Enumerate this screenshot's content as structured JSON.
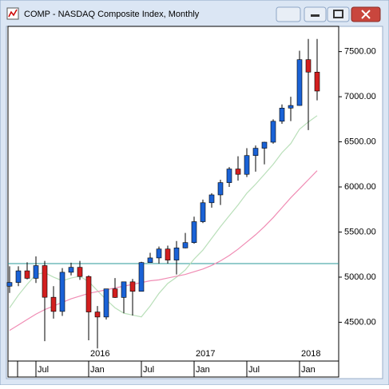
{
  "chart_data": {
    "type": "candlestick",
    "title": "COMP - NASDAQ Composite Index, Monthly",
    "categories": [
      null,
      null,
      null,
      "Jul",
      null,
      null,
      null,
      null,
      null,
      "Jan",
      null,
      null,
      null,
      null,
      null,
      "Jul",
      null,
      null,
      null,
      null,
      null,
      "Jan",
      null,
      null,
      null,
      null,
      null,
      "Jul",
      null,
      null,
      null,
      null,
      null,
      "Jan",
      null,
      null
    ],
    "years": [
      null,
      null,
      null,
      null,
      null,
      null,
      null,
      null,
      null,
      "2016",
      null,
      null,
      null,
      null,
      null,
      null,
      null,
      null,
      null,
      null,
      null,
      "2017",
      null,
      null,
      null,
      null,
      null,
      null,
      null,
      null,
      null,
      null,
      null,
      "2018",
      null,
      null
    ],
    "open": [
      4900,
      4941,
      5070,
      4987,
      5128,
      4777,
      4620,
      5054,
      5109,
      5007,
      4614,
      4558,
      4870,
      4775,
      4948,
      4843,
      5162,
      5213,
      5312,
      5189,
      5324,
      5383,
      5615,
      5825,
      5912,
      6048,
      6199,
      6140,
      6348,
      6429,
      6496,
      6728,
      6874,
      6903,
      7411,
      7273
    ],
    "high": [
      5120,
      5120,
      5165,
      5230,
      5180,
      4900,
      5100,
      5160,
      5180,
      5020,
      4680,
      4870,
      4990,
      4950,
      4980,
      5170,
      5270,
      5340,
      5350,
      5400,
      5490,
      5670,
      5860,
      5930,
      6080,
      6220,
      6340,
      6430,
      6460,
      6500,
      6750,
      6915,
      7000,
      7510,
      7640,
      7640
    ],
    "low": [
      4825,
      4900,
      4975,
      4935,
      4290,
      4540,
      4570,
      5020,
      4970,
      4300,
      4210,
      4530,
      4770,
      4600,
      4575,
      4840,
      5160,
      5150,
      5150,
      5030,
      5320,
      5370,
      5600,
      5770,
      5800,
      6000,
      6070,
      6110,
      6170,
      6250,
      6480,
      6700,
      6730,
      6900,
      6630,
      6960
    ],
    "close": [
      4941,
      5070,
      4987,
      5128,
      4777,
      4620,
      5054,
      5109,
      5007,
      4614,
      4558,
      4870,
      4775,
      4948,
      4843,
      5162,
      5213,
      5312,
      5189,
      5324,
      5383,
      5615,
      5825,
      5912,
      6048,
      6199,
      6140,
      6348,
      6429,
      6496,
      6728,
      6874,
      6903,
      7411,
      7273,
      7063
    ],
    "up_color": "#1a62d6",
    "down_color": "#d21f1f",
    "series": [
      {
        "color": "#b9dfb9",
        "values": [
          4660,
          4800,
          4920,
          5030,
          5050,
          5000,
          4960,
          4990,
          5010,
          4950,
          4850,
          4750,
          4660,
          4600,
          4580,
          4560,
          4680,
          4820,
          4930,
          5000,
          5080,
          5200,
          5300,
          5430,
          5560,
          5680,
          5800,
          5930,
          6030,
          6140,
          6250,
          6380,
          6480,
          6640,
          6720,
          6790
        ]
      },
      {
        "color": "#f08cb4",
        "values": [
          4410,
          4470,
          4530,
          4590,
          4640,
          4680,
          4720,
          4760,
          4790,
          4820,
          4840,
          4860,
          4880,
          4900,
          4920,
          4940,
          4960,
          4970,
          4990,
          5010,
          5030,
          5060,
          5090,
          5130,
          5180,
          5240,
          5310,
          5390,
          5470,
          5560,
          5660,
          5770,
          5880,
          5980,
          6080,
          6180
        ]
      }
    ],
    "reference_line": {
      "value": 5150,
      "color": "#2a9a9a"
    },
    "ylim": [
      4070,
      7780
    ],
    "yticks": [
      {
        "value": 4500,
        "label": "4500.00"
      },
      {
        "value": 5000,
        "label": "5000.00"
      },
      {
        "value": 5500,
        "label": "5500.00"
      },
      {
        "value": 6000,
        "label": "6000.00"
      },
      {
        "value": 6500,
        "label": "6500.00"
      },
      {
        "value": 7000,
        "label": "7000.00"
      },
      {
        "value": 7500,
        "label": "7500.00"
      }
    ]
  }
}
